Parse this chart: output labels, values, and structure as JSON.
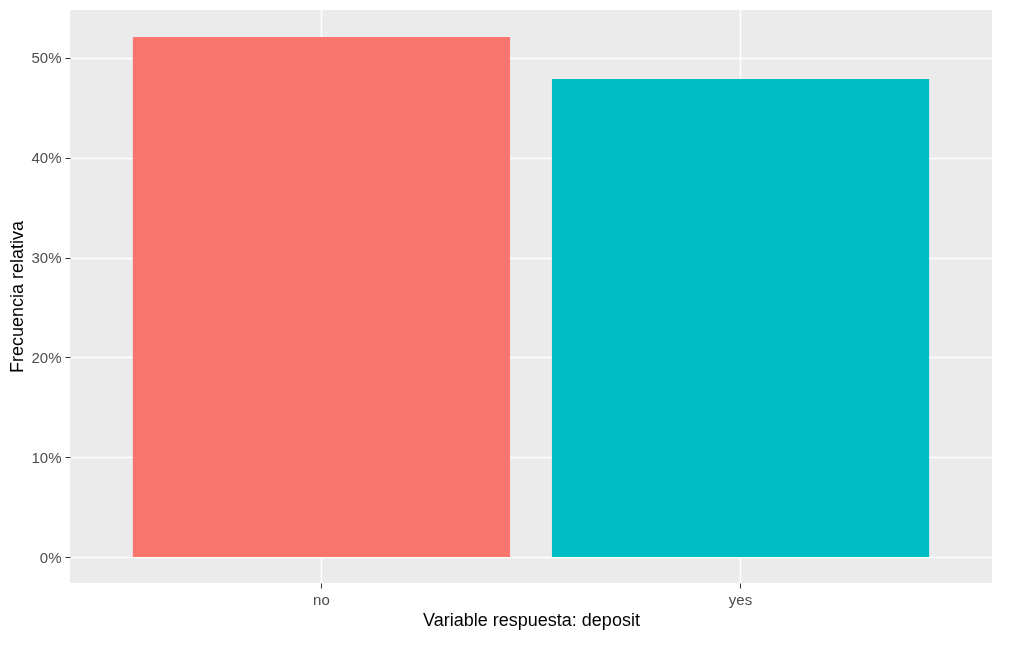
{
  "chart_data": {
    "type": "bar",
    "xlabel": "Variable respuesta: deposit",
    "ylabel": "Frecuencia relativa",
    "categories": [
      "no",
      "yes"
    ],
    "values": [
      52.1,
      47.9
    ],
    "colors": [
      "#f8766d",
      "#00bfc4"
    ],
    "ylim": [
      -2.6,
      54.8
    ],
    "yticks": [
      {
        "value": 0,
        "label": "0%"
      },
      {
        "value": 10,
        "label": "10%"
      },
      {
        "value": 20,
        "label": "20%"
      },
      {
        "value": 30,
        "label": "30%"
      },
      {
        "value": 40,
        "label": "40%"
      },
      {
        "value": 50,
        "label": "50%"
      }
    ],
    "grid": true,
    "legend": false
  }
}
